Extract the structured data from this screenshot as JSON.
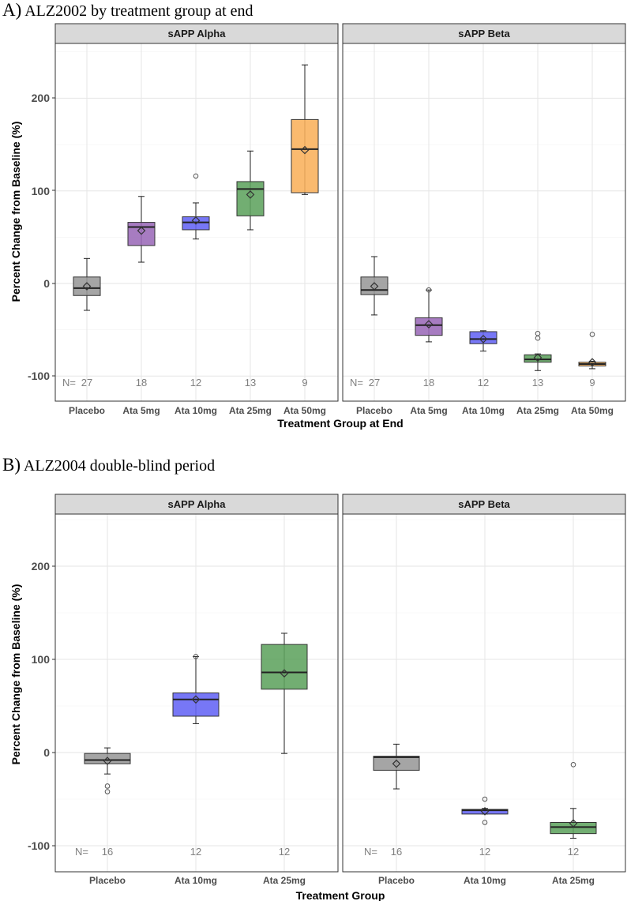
{
  "chart_data": [
    {
      "type": "boxplot",
      "title": "A) ALZ2002 by treatment group at end",
      "panel_letter": "A)",
      "panel_text": "ALZ2002 by treatment group at end",
      "xlabel": "Treatment Group at End",
      "ylabel": "Percent Change from Baseline (%)",
      "ylim": [
        -125,
        255
      ],
      "yticks": [
        -100,
        0,
        100,
        200
      ],
      "n_prefix": "N=",
      "categories": [
        "Placebo",
        "Ata 5mg",
        "Ata 10mg",
        "Ata 25mg",
        "Ata 50mg"
      ],
      "colors": [
        "#999999",
        "#9b6ab8",
        "#6464f5",
        "#5fa35f",
        "#f9b15b"
      ],
      "facets": [
        {
          "label": "sAPP Alpha",
          "n": [
            "27",
            "18",
            "12",
            "13",
            "9"
          ],
          "boxes": [
            {
              "q1": -13,
              "median": -5,
              "q3": 7,
              "whisker_low": -29,
              "whisker_high": 27,
              "mean": -3,
              "outliers": []
            },
            {
              "q1": 41,
              "median": 61,
              "q3": 66,
              "whisker_low": 23,
              "whisker_high": 94,
              "mean": 57,
              "outliers": []
            },
            {
              "q1": 58,
              "median": 66,
              "q3": 72,
              "whisker_low": 48,
              "whisker_high": 87,
              "mean": 68,
              "outliers": [
                116
              ]
            },
            {
              "q1": 73,
              "median": 102,
              "q3": 110,
              "whisker_low": 58,
              "whisker_high": 143,
              "mean": 96,
              "outliers": []
            },
            {
              "q1": 98,
              "median": 145,
              "q3": 177,
              "whisker_low": 96,
              "whisker_high": 236,
              "mean": 144,
              "outliers": []
            }
          ]
        },
        {
          "label": "sAPP Beta",
          "n": [
            "27",
            "18",
            "12",
            "13",
            "9"
          ],
          "boxes": [
            {
              "q1": -12,
              "median": -7,
              "q3": 7,
              "whisker_low": -34,
              "whisker_high": 29,
              "mean": -3,
              "outliers": []
            },
            {
              "q1": -56,
              "median": -45,
              "q3": -37,
              "whisker_low": -63,
              "whisker_high": -7,
              "mean": -44,
              "outliers": [
                -7
              ]
            },
            {
              "q1": -65,
              "median": -60,
              "q3": -52,
              "whisker_low": -73,
              "whisker_high": -51,
              "mean": -60,
              "outliers": []
            },
            {
              "q1": -85,
              "median": -82,
              "q3": -77,
              "whisker_low": -94,
              "whisker_high": -76,
              "mean": -80,
              "outliers": [
                -54,
                -59
              ]
            },
            {
              "q1": -89,
              "median": -87,
              "q3": -85,
              "whisker_low": -92,
              "whisker_high": -84,
              "mean": -85,
              "outliers": [
                -55
              ]
            }
          ]
        }
      ]
    },
    {
      "type": "boxplot",
      "title": "B) ALZ2004 double-blind period",
      "panel_letter": "B)",
      "panel_text": "ALZ2004 double-blind period",
      "xlabel": "Treatment Group",
      "ylabel": "Percent Change from Baseline (%)",
      "ylim": [
        -125,
        255
      ],
      "yticks": [
        -100,
        0,
        100,
        200
      ],
      "n_prefix": "N=",
      "categories": [
        "Placebo",
        "Ata 10mg",
        "Ata 25mg"
      ],
      "colors": [
        "#999999",
        "#6464f5",
        "#5fa35f"
      ],
      "facets": [
        {
          "label": "sAPP Alpha",
          "n": [
            "16",
            "12",
            "12"
          ],
          "boxes": [
            {
              "q1": -12,
              "median": -8,
              "q3": -1,
              "whisker_low": -23,
              "whisker_high": 5,
              "mean": -9,
              "outliers": [
                -36,
                -42
              ]
            },
            {
              "q1": 39,
              "median": 57,
              "q3": 64,
              "whisker_low": 31,
              "whisker_high": 103,
              "mean": 57,
              "outliers": [
                103
              ]
            },
            {
              "q1": 68,
              "median": 86,
              "q3": 116,
              "whisker_low": -1,
              "whisker_high": 128,
              "mean": 85,
              "outliers": []
            }
          ]
        },
        {
          "label": "sAPP Beta",
          "n": [
            "16",
            "12",
            "12"
          ],
          "boxes": [
            {
              "q1": -19,
              "median": -5,
              "q3": -4,
              "whisker_low": -39,
              "whisker_high": 9,
              "mean": -12,
              "outliers": []
            },
            {
              "q1": -66,
              "median": -62,
              "q3": -61,
              "whisker_low": -66,
              "whisker_high": -60,
              "mean": -63,
              "outliers": [
                -50,
                -75
              ]
            },
            {
              "q1": -87,
              "median": -80,
              "q3": -75,
              "whisker_low": -92,
              "whisker_high": -60,
              "mean": -76,
              "outliers": [
                -13
              ]
            }
          ]
        }
      ]
    }
  ]
}
